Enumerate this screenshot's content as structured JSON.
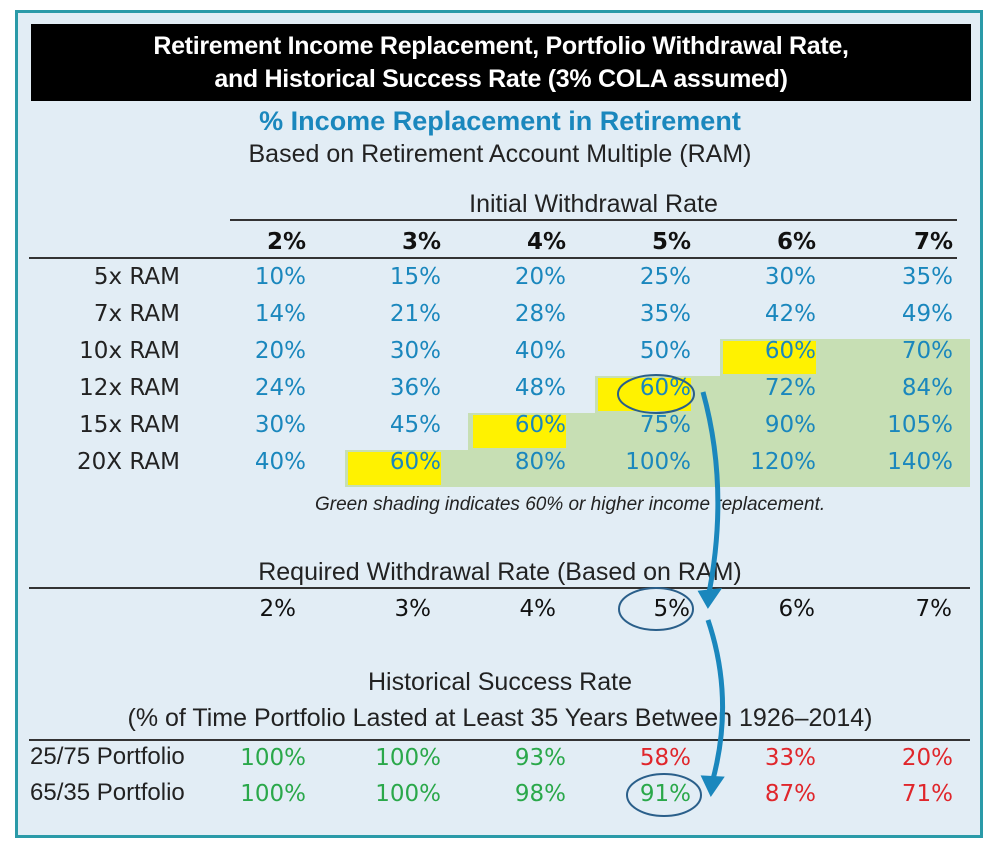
{
  "title_line1": "Retirement Income Replacement, Portfolio Withdrawal Rate,",
  "title_line2": "and Historical Success Rate (3% COLA assumed)",
  "section1": {
    "heading": "% Income Replacement in Retirement",
    "subheading": "Based on Retirement Account Multiple (RAM)",
    "column_group_label": "Initial Withdrawal Rate",
    "footnote": "Green shading indicates 60% or higher income replacement."
  },
  "section2": {
    "heading": "Required Withdrawal Rate  (Based on RAM)"
  },
  "section3": {
    "heading": "Historical Success Rate",
    "subheading": "(% of Time Portfolio Lasted at Least 35 Years Between 1926–2014)"
  },
  "colors": {
    "value_blue": "#1a87bd",
    "success_green": "#2aa84a",
    "fail_red": "#e0262b",
    "shading_green": "#c7dfb4",
    "highlight_yellow": "#fff200",
    "circle_arrow_blue": "#1a87bd"
  },
  "chart_data": {
    "type": "table",
    "columns": [
      "2%",
      "3%",
      "4%",
      "5%",
      "6%",
      "7%"
    ],
    "income_replacement": {
      "rows": [
        {
          "label": "5x RAM",
          "values": [
            "10%",
            "15%",
            "20%",
            "25%",
            "30%",
            "35%"
          ]
        },
        {
          "label": "7x RAM",
          "values": [
            "14%",
            "21%",
            "28%",
            "35%",
            "42%",
            "49%"
          ]
        },
        {
          "label": "10x RAM",
          "values": [
            "20%",
            "30%",
            "40%",
            "50%",
            "60%",
            "70%"
          ]
        },
        {
          "label": "12x RAM",
          "values": [
            "24%",
            "36%",
            "48%",
            "60%",
            "72%",
            "84%"
          ]
        },
        {
          "label": "15x RAM",
          "values": [
            "30%",
            "45%",
            "60%",
            "75%",
            "90%",
            "105%"
          ]
        },
        {
          "label": "20X RAM",
          "values": [
            "40%",
            "60%",
            "80%",
            "100%",
            "120%",
            "140%"
          ]
        }
      ],
      "green_shading_threshold": "60%",
      "highlighted_60_percent_cells": [
        [
          2,
          4
        ],
        [
          3,
          3
        ],
        [
          4,
          2
        ],
        [
          5,
          1
        ]
      ],
      "circled_cell": [
        3,
        3
      ]
    },
    "required_withdrawal_rate": [
      "2%",
      "3%",
      "4%",
      "5%",
      "6%",
      "7%"
    ],
    "required_circled_index": 3,
    "success_rate": {
      "rows": [
        {
          "label": "25/75 Portfolio",
          "values": [
            "100%",
            "100%",
            "93%",
            "58%",
            "33%",
            "20%"
          ],
          "status": [
            "good",
            "good",
            "good",
            "bad",
            "bad",
            "bad"
          ]
        },
        {
          "label": "65/35 Portfolio",
          "values": [
            "100%",
            "100%",
            "98%",
            "91%",
            "87%",
            "71%"
          ],
          "status": [
            "good",
            "good",
            "good",
            "good",
            "bad",
            "bad"
          ]
        }
      ],
      "circled_cell": [
        1,
        3
      ]
    }
  }
}
